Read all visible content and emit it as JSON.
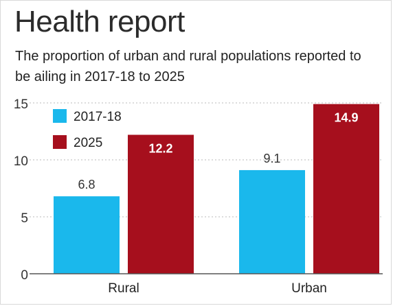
{
  "chart_data": {
    "type": "bar",
    "title": "Health report",
    "subtitle": "The proportion of urban and rural populations reported to be ailing in 2017-18 to 2025",
    "categories": [
      "Rural",
      "Urban"
    ],
    "series": [
      {
        "name": "2017-18",
        "values": [
          6.8,
          9.1
        ],
        "labels": [
          "6.8",
          "9.1"
        ],
        "color": "#1ab8ec"
      },
      {
        "name": "2025",
        "values": [
          12.2,
          14.9
        ],
        "labels": [
          "12.2",
          "14.9"
        ],
        "color": "#a60f1d"
      }
    ],
    "y_ticks": [
      0,
      5,
      10,
      15
    ],
    "y_tick_labels": [
      "0",
      "5",
      "10",
      "15"
    ],
    "ylim": [
      0,
      15
    ],
    "xlabel": "",
    "ylabel": "",
    "grid": true,
    "legend_position": "top-left"
  }
}
